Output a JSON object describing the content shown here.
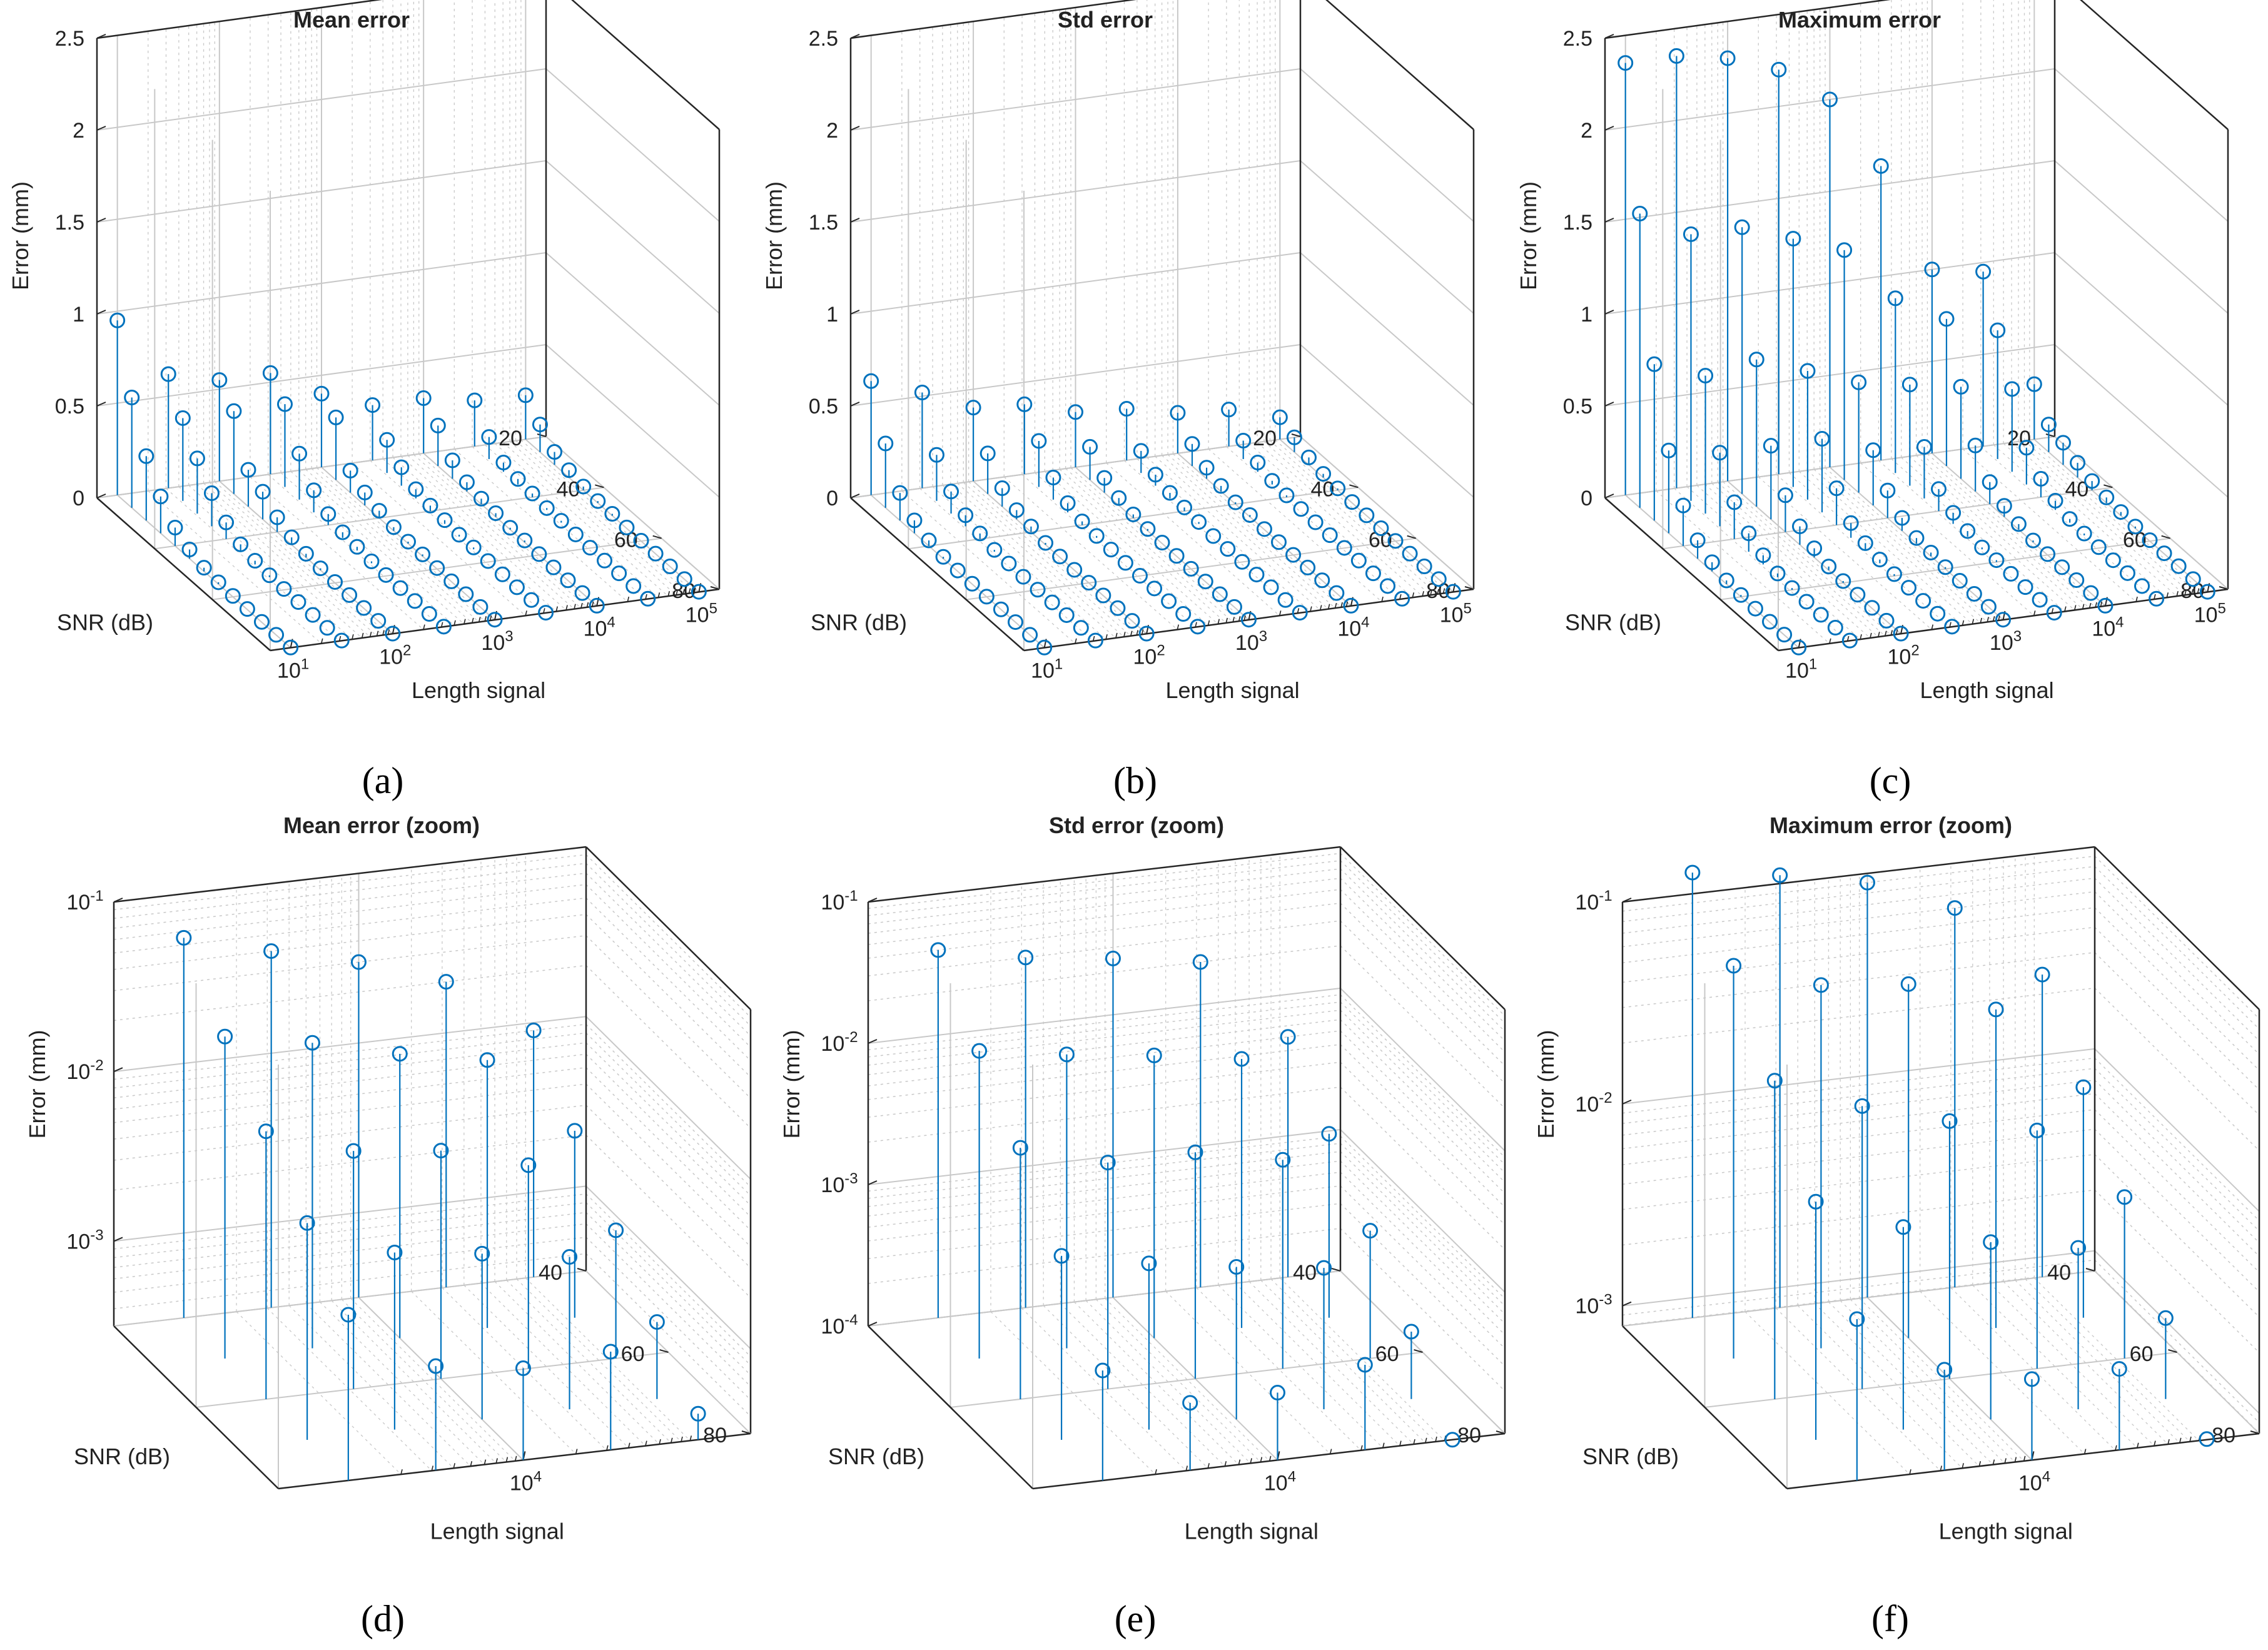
{
  "figure": {
    "marker_color": "#0072BD",
    "grid_color": "#c8c8c8",
    "axis_color": "#262626"
  },
  "chart_data": [
    {
      "type": "stem3",
      "title": "Mean error",
      "caption": "(a)",
      "zlabel": "Error (mm)",
      "ylabel": "SNR (dB)",
      "xlabel": "Length signal",
      "zscale": "linear",
      "zlim": [
        0,
        2.5
      ],
      "zticks": [
        "0",
        "0.5",
        "1",
        "1.5",
        "2",
        "2.5"
      ],
      "yticks": [
        "20",
        "40",
        "60",
        "80"
      ],
      "xticks": [
        {
          "base": "10",
          "exp": "1"
        },
        {
          "base": "10",
          "exp": "2"
        },
        {
          "base": "10",
          "exp": "3"
        },
        {
          "base": "10",
          "exp": "4"
        },
        {
          "base": "10",
          "exp": "5"
        }
      ],
      "snr": [
        20,
        25,
        30,
        35,
        40,
        45,
        50,
        55,
        60,
        65,
        70,
        75,
        80
      ],
      "length_exp": [
        1,
        1.5,
        2,
        2.5,
        3,
        3.5,
        4,
        4.5,
        5
      ],
      "values": [
        [
          0.95,
          0.62,
          0.55,
          0.55,
          0.4,
          0.3,
          0.3,
          0.25,
          0.24
        ],
        [
          0.6,
          0.45,
          0.45,
          0.45,
          0.34,
          0.18,
          0.22,
          0.12,
          0.15
        ],
        [
          0.35,
          0.3,
          0.2,
          0.25,
          0.12,
          0.1,
          0.1,
          0.05,
          0.07
        ],
        [
          0.2,
          0.18,
          0.15,
          0.12,
          0.07,
          0.05,
          0.05,
          0.03,
          0.04
        ],
        [
          0.1,
          0.09,
          0.08,
          0.06,
          0.04,
          0.03,
          0.03,
          0.02,
          0.02
        ],
        [
          0.05,
          0.04,
          0.04,
          0.03,
          0.02,
          0.02,
          0.02,
          0.01,
          0.01
        ],
        [
          0.02,
          0.02,
          0.02,
          0.02,
          0.01,
          0.01,
          0.01,
          0.01,
          0.01
        ],
        [
          0.01,
          0.01,
          0.01,
          0.01,
          0.01,
          0.01,
          0.01,
          0.005,
          0.005
        ],
        [
          0.005,
          0.005,
          0.005,
          0.005,
          0.005,
          0.005,
          0.005,
          0.002,
          0.002
        ],
        [
          0.003,
          0.003,
          0.003,
          0.003,
          0.002,
          0.002,
          0.002,
          0.001,
          0.001
        ],
        [
          0.002,
          0.002,
          0.002,
          0.002,
          0.001,
          0.001,
          0.001,
          0.001,
          0.001
        ],
        [
          0.001,
          0.001,
          0.001,
          0.001,
          0.001,
          0.001,
          0.001,
          0.001,
          0.001
        ],
        [
          0.001,
          0.001,
          0.001,
          0.001,
          0.001,
          0.001,
          0.001,
          0.001,
          0.001
        ]
      ]
    },
    {
      "type": "stem3",
      "title": "Std error",
      "caption": "(b)",
      "zlabel": "Error (mm)",
      "ylabel": "SNR (dB)",
      "xlabel": "Length signal",
      "zscale": "linear",
      "zlim": [
        0,
        2.5
      ],
      "zticks": [
        "0",
        "0.5",
        "1",
        "1.5",
        "2",
        "2.5"
      ],
      "yticks": [
        "20",
        "40",
        "60",
        "80"
      ],
      "xticks": [
        {
          "base": "10",
          "exp": "1"
        },
        {
          "base": "10",
          "exp": "2"
        },
        {
          "base": "10",
          "exp": "3"
        },
        {
          "base": "10",
          "exp": "4"
        },
        {
          "base": "10",
          "exp": "5"
        }
      ],
      "snr": [
        20,
        25,
        30,
        35,
        40,
        45,
        50,
        55,
        60,
        65,
        70,
        75,
        80
      ],
      "length_exp": [
        1,
        1.5,
        2,
        2.5,
        3,
        3.5,
        4,
        4.5,
        5
      ],
      "values": [
        [
          0.62,
          0.52,
          0.4,
          0.38,
          0.3,
          0.28,
          0.22,
          0.2,
          0.12
        ],
        [
          0.35,
          0.25,
          0.22,
          0.25,
          0.18,
          0.12,
          0.12,
          0.1,
          0.08
        ],
        [
          0.15,
          0.12,
          0.1,
          0.12,
          0.08,
          0.06,
          0.06,
          0.05,
          0.04
        ],
        [
          0.07,
          0.06,
          0.05,
          0.05,
          0.04,
          0.03,
          0.03,
          0.02,
          0.02
        ],
        [
          0.03,
          0.03,
          0.03,
          0.02,
          0.02,
          0.02,
          0.01,
          0.01,
          0.01
        ],
        [
          0.01,
          0.01,
          0.01,
          0.01,
          0.01,
          0.01,
          0.01,
          0.005,
          0.005
        ],
        [
          0.005,
          0.005,
          0.005,
          0.005,
          0.005,
          0.003,
          0.003,
          0.002,
          0.002
        ],
        [
          0.002,
          0.002,
          0.002,
          0.002,
          0.002,
          0.002,
          0.001,
          0.001,
          0.001
        ],
        [
          0.001,
          0.001,
          0.001,
          0.001,
          0.001,
          0.001,
          0.001,
          0.001,
          0.001
        ],
        [
          0.001,
          0.001,
          0.001,
          0.001,
          0.001,
          0.001,
          0.001,
          0.001,
          0.001
        ],
        [
          0.001,
          0.001,
          0.001,
          0.001,
          0.001,
          0.001,
          0.001,
          0.001,
          0.001
        ],
        [
          0.001,
          0.001,
          0.001,
          0.001,
          0.001,
          0.001,
          0.001,
          0.001,
          0.001
        ],
        [
          0.001,
          0.001,
          0.001,
          0.001,
          0.001,
          0.001,
          0.001,
          0.001,
          0.001
        ]
      ]
    },
    {
      "type": "stem3",
      "title": "Maximum error",
      "caption": "(c)",
      "zlabel": "Error (mm)",
      "ylabel": "SNR (dB)",
      "xlabel": "Length signal",
      "zscale": "linear",
      "zlim": [
        0,
        2.5
      ],
      "zticks": [
        "0",
        "0.5",
        "1",
        "1.5",
        "2",
        "2.5"
      ],
      "yticks": [
        "20",
        "40",
        "60",
        "80"
      ],
      "xticks": [
        {
          "base": "10",
          "exp": "1"
        },
        {
          "base": "10",
          "exp": "2"
        },
        {
          "base": "10",
          "exp": "3"
        },
        {
          "base": "10",
          "exp": "4"
        },
        {
          "base": "10",
          "exp": "5"
        }
      ],
      "snr": [
        20,
        25,
        30,
        35,
        40,
        45,
        50,
        55,
        60,
        65,
        70,
        75,
        80
      ],
      "length_exp": [
        1,
        1.5,
        2,
        2.5,
        3,
        3.5,
        4,
        4.5,
        5
      ],
      "values": [
        [
          2.35,
          2.35,
          2.3,
          2.2,
          2.0,
          1.6,
          1.0,
          0.95,
          0.3
        ],
        [
          1.6,
          1.45,
          1.45,
          1.35,
          1.25,
          0.95,
          0.8,
          0.7,
          0.15
        ],
        [
          0.85,
          0.75,
          0.8,
          0.7,
          0.6,
          0.55,
          0.5,
          0.45,
          0.12
        ],
        [
          0.45,
          0.4,
          0.4,
          0.4,
          0.3,
          0.28,
          0.25,
          0.2,
          0.08
        ],
        [
          0.22,
          0.2,
          0.2,
          0.2,
          0.15,
          0.12,
          0.12,
          0.1,
          0.05
        ],
        [
          0.1,
          0.1,
          0.1,
          0.08,
          0.07,
          0.06,
          0.06,
          0.05,
          0.03
        ],
        [
          0.05,
          0.05,
          0.05,
          0.04,
          0.03,
          0.03,
          0.03,
          0.02,
          0.02
        ],
        [
          0.02,
          0.02,
          0.02,
          0.02,
          0.02,
          0.01,
          0.01,
          0.01,
          0.01
        ],
        [
          0.01,
          0.01,
          0.01,
          0.01,
          0.01,
          0.01,
          0.005,
          0.005,
          0.005
        ],
        [
          0.005,
          0.005,
          0.005,
          0.005,
          0.005,
          0.005,
          0.003,
          0.003,
          0.003
        ],
        [
          0.003,
          0.003,
          0.003,
          0.003,
          0.003,
          0.002,
          0.002,
          0.002,
          0.002
        ],
        [
          0.002,
          0.002,
          0.002,
          0.002,
          0.002,
          0.002,
          0.001,
          0.001,
          0.001
        ],
        [
          0.001,
          0.001,
          0.001,
          0.001,
          0.001,
          0.001,
          0.001,
          0.001,
          0.001
        ]
      ]
    },
    {
      "type": "stem3",
      "title": "Mean error (zoom)",
      "caption": "(d)",
      "zlabel": "Error (mm)",
      "ylabel": "SNR (dB)",
      "xlabel": "Length signal",
      "zscale": "log",
      "zlim": [
        -3.5,
        -1
      ],
      "zticks": [
        {
          "base": "10",
          "exp": "-3"
        },
        {
          "base": "10",
          "exp": "-2"
        },
        {
          "base": "10",
          "exp": "-1"
        }
      ],
      "yticks": [
        "40",
        "60",
        "80"
      ],
      "xticks": [
        {
          "base": "10",
          "exp": "4"
        }
      ],
      "snr": [
        40,
        50,
        60,
        70,
        80
      ],
      "length_exp": [
        3,
        3.5,
        4,
        4.5,
        5
      ],
      "values": [
        [
          0.055,
          0.04,
          0.03,
          0.02,
          0.009
        ],
        [
          0.025,
          0.02,
          0.015,
          0.012,
          0.004
        ],
        [
          0.012,
          0.008,
          0.007,
          0.005,
          0.0018
        ],
        [
          0.006,
          0.0035,
          0.003,
          0.0025,
          0.0009
        ],
        [
          0.003,
          0.0013,
          0.0011,
          0.0012,
          0.00045
        ]
      ]
    },
    {
      "type": "stem3",
      "title": "Std error (zoom)",
      "caption": "(e)",
      "zlabel": "Error (mm)",
      "ylabel": "SNR (dB)",
      "xlabel": "Length signal",
      "zscale": "log",
      "zlim": [
        -4,
        -1
      ],
      "zticks": [
        {
          "base": "10",
          "exp": "-4"
        },
        {
          "base": "10",
          "exp": "-3"
        },
        {
          "base": "10",
          "exp": "-2"
        },
        {
          "base": "10",
          "exp": "-1"
        }
      ],
      "yticks": [
        "40",
        "60",
        "80"
      ],
      "xticks": [
        {
          "base": "10",
          "exp": "4"
        }
      ],
      "snr": [
        40,
        50,
        60,
        70,
        80
      ],
      "length_exp": [
        3,
        3.5,
        4,
        4.5,
        5
      ],
      "values": [
        [
          0.04,
          0.03,
          0.025,
          0.02,
          0.005
        ],
        [
          0.015,
          0.012,
          0.01,
          0.008,
          0.002
        ],
        [
          0.006,
          0.004,
          0.004,
          0.003,
          0.0008
        ],
        [
          0.002,
          0.0015,
          0.0012,
          0.001,
          0.0003
        ],
        [
          0.0006,
          0.0003,
          0.0003,
          0.0004,
          6e-05
        ]
      ]
    },
    {
      "type": "stem3",
      "title": "Maximum error (zoom)",
      "caption": "(f)",
      "zlabel": "Error (mm)",
      "ylabel": "SNR (dB)",
      "xlabel": "Length signal",
      "zscale": "log",
      "zlim": [
        -3.1,
        -1
      ],
      "zticks": [
        {
          "base": "10",
          "exp": "-3"
        },
        {
          "base": "10",
          "exp": "-2"
        },
        {
          "base": "10",
          "exp": "-1"
        }
      ],
      "yticks": [
        "40",
        "60",
        "80"
      ],
      "xticks": [
        {
          "base": "10",
          "exp": "4"
        }
      ],
      "snr": [
        40,
        50,
        60,
        70,
        80
      ],
      "length_exp": [
        3,
        3.5,
        4,
        4.5,
        5
      ],
      "values": [
        [
          0.15,
          0.11,
          0.09,
          0.06,
          0.025
        ],
        [
          0.07,
          0.05,
          0.045,
          0.03,
          0.011
        ],
        [
          0.03,
          0.02,
          0.015,
          0.012,
          0.005
        ],
        [
          0.012,
          0.008,
          0.006,
          0.005,
          0.002
        ],
        [
          0.005,
          0.0025,
          0.002,
          0.002,
          0.0008
        ]
      ]
    }
  ]
}
